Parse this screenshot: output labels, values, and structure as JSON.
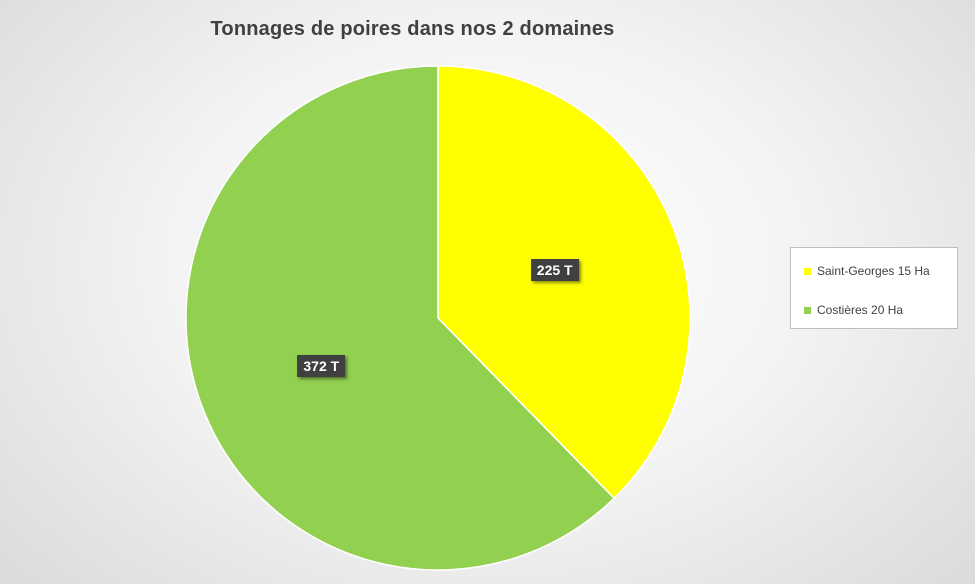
{
  "chart_data": {
    "type": "pie",
    "title": "Tonnages de poires dans nos 2 domaines",
    "categories": [
      "Saint-Georges 15 Ha",
      "Costières 20 Ha"
    ],
    "values": [
      225,
      372
    ],
    "data_labels": [
      "225 T",
      "372 T"
    ],
    "colors": [
      "#ffff00",
      "#92d050"
    ],
    "legend": {
      "position": "right",
      "entries": [
        "Saint-Georges 15 Ha",
        "Costières 20 Ha"
      ]
    }
  }
}
